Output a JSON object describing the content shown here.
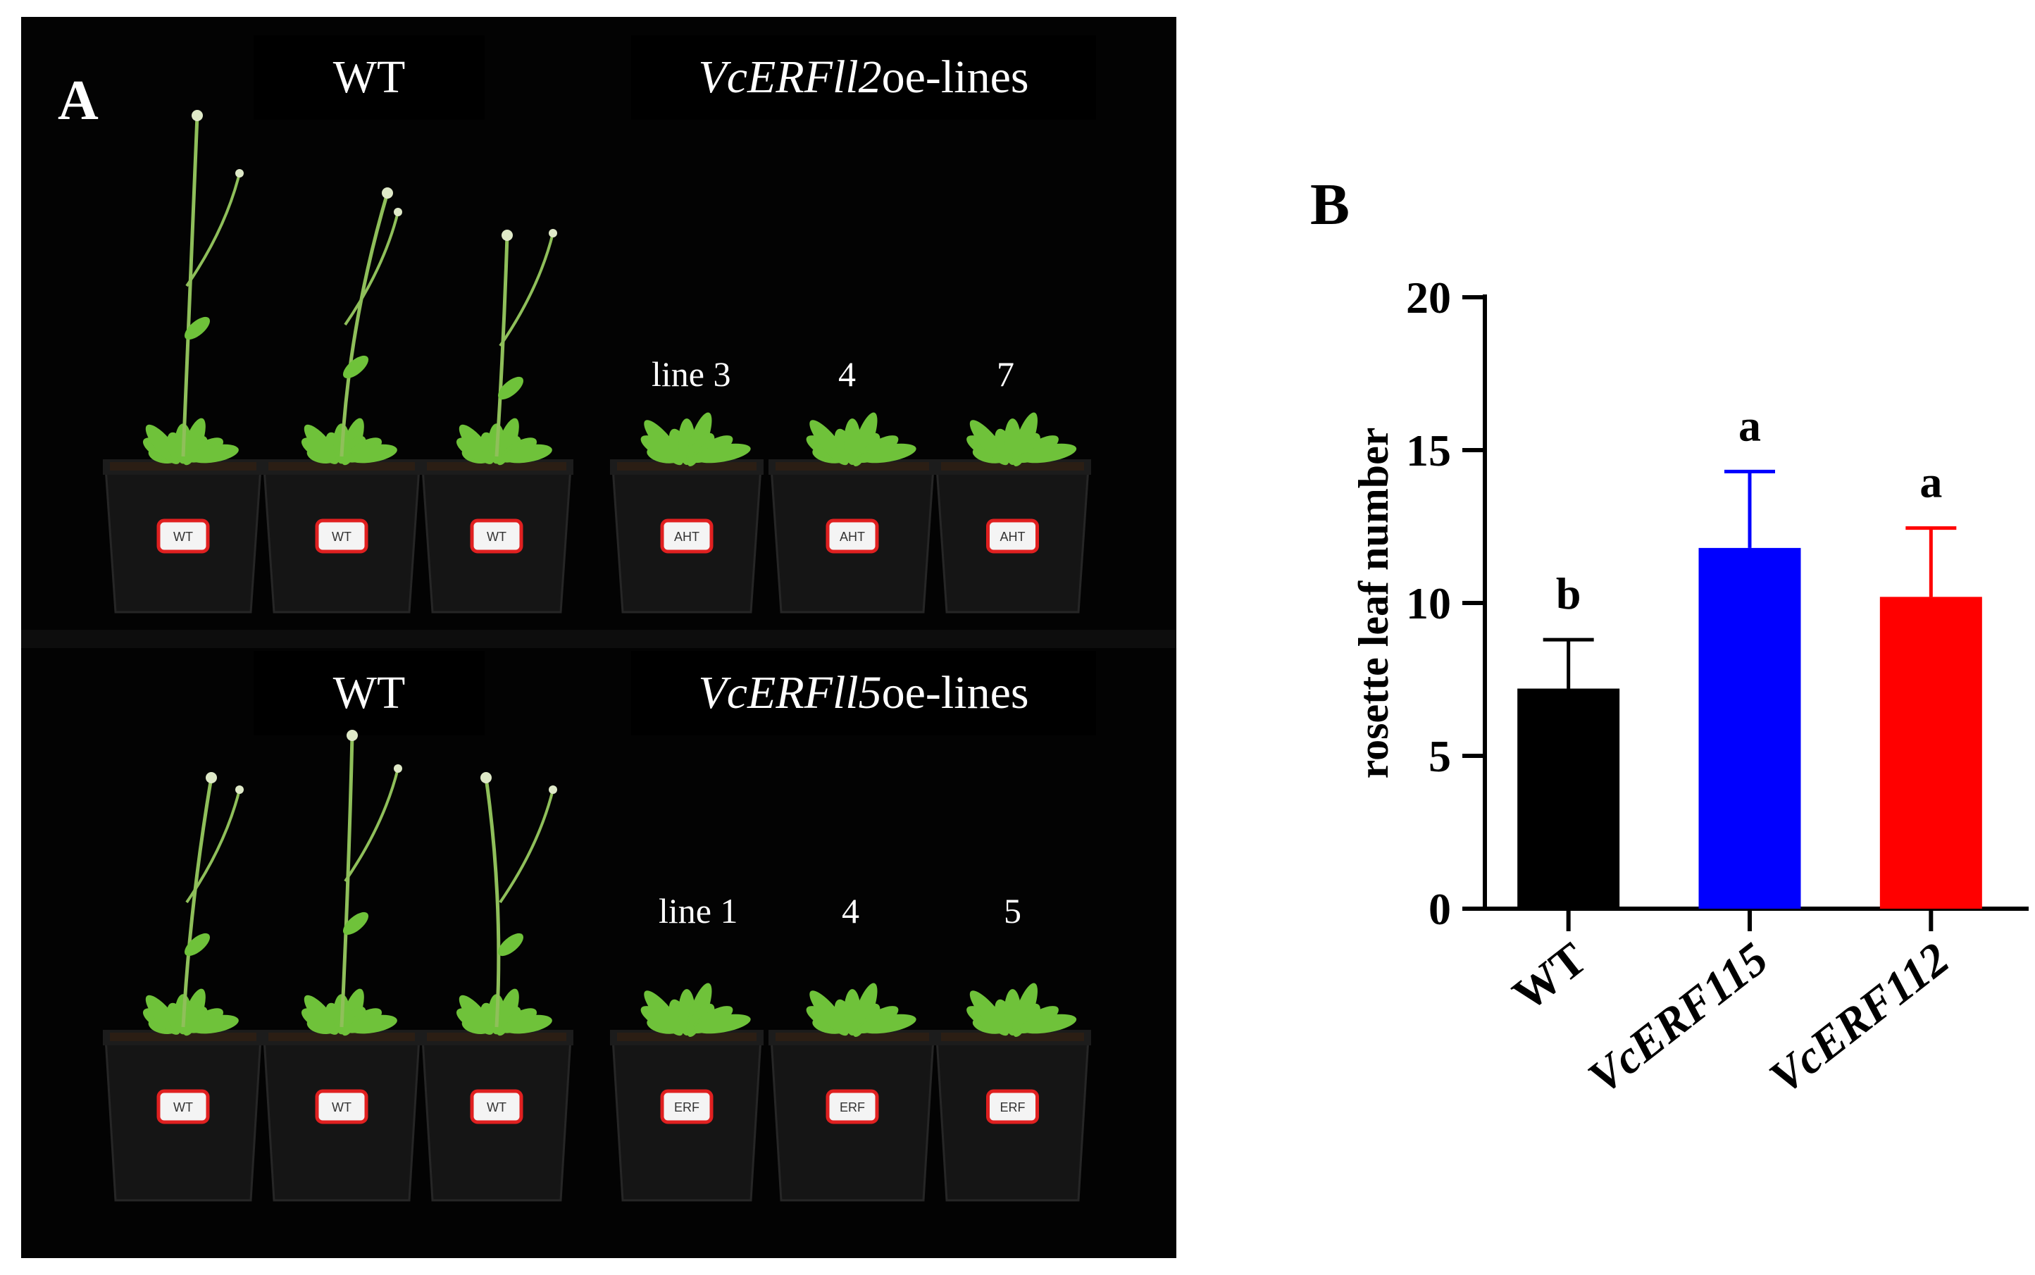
{
  "panel_a": {
    "letter": "A",
    "top_row": {
      "wt_label": "WT",
      "oe_label_gene": "VcERFll2",
      "oe_label_suffix": "oe-lines",
      "line_labels": [
        "line 3",
        "4",
        "7"
      ],
      "pot_labels": [
        "WT",
        "WT",
        "WT",
        "AHT",
        "AHT",
        "AHT"
      ]
    },
    "bottom_row": {
      "wt_label": "WT",
      "oe_label_gene": "VcERFll5",
      "oe_label_suffix": "oe-lines",
      "line_labels": [
        "line 1",
        "4",
        "5"
      ],
      "pot_labels": [
        "WT",
        "WT",
        "WT",
        "ERF",
        "ERF",
        "ERF"
      ]
    },
    "colors": {
      "background": "#030303",
      "leaf": "#6fc23a",
      "stem": "#8fbf5a",
      "pot": "#151515",
      "label_border": "#e02020"
    }
  },
  "panel_b": {
    "letter": "B",
    "chart_data": {
      "type": "bar",
      "categories": [
        "WT",
        "VcERF115",
        "VcERF112"
      ],
      "italic_categories": [
        false,
        true,
        true
      ],
      "values": [
        7.2,
        11.8,
        10.2
      ],
      "error": [
        1.6,
        2.5,
        2.25
      ],
      "significance": [
        "b",
        "a",
        "a"
      ],
      "colors": [
        "#000000",
        "#0000ff",
        "#ff0000"
      ],
      "ylabel": "rosette leaf number",
      "xlabel": "",
      "ylim": [
        0,
        20
      ],
      "yticks": [
        0,
        5,
        10,
        15,
        20
      ],
      "grid": false
    }
  }
}
